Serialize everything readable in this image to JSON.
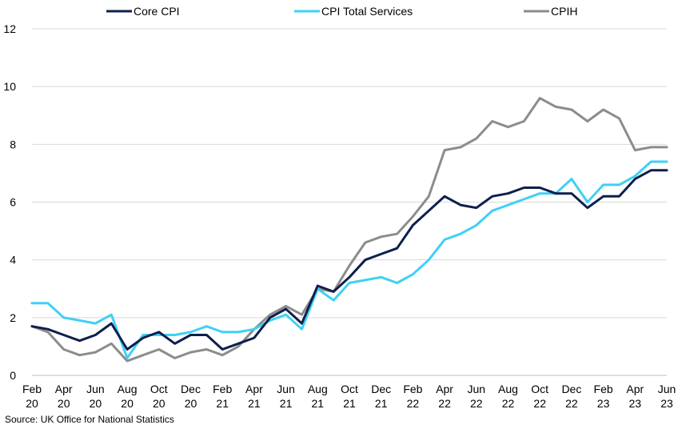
{
  "chart_data": {
    "type": "line",
    "title": "",
    "xlabel": "",
    "ylabel": "",
    "ylim": [
      0,
      12
    ],
    "yticks": [
      0,
      2,
      4,
      6,
      8,
      10,
      12
    ],
    "grid": "horizontal",
    "legend_position": "top",
    "x": [
      "Feb 20",
      "Mar 20",
      "Apr 20",
      "May 20",
      "Jun 20",
      "Jul 20",
      "Aug 20",
      "Sep 20",
      "Oct 20",
      "Nov 20",
      "Dec 20",
      "Jan 21",
      "Feb 21",
      "Mar 21",
      "Apr 21",
      "May 21",
      "Jun 21",
      "Jul 21",
      "Aug 21",
      "Sep 21",
      "Oct 21",
      "Nov 21",
      "Dec 21",
      "Jan 22",
      "Feb 22",
      "Mar 22",
      "Apr 22",
      "May 22",
      "Jun 22",
      "Jul 22",
      "Aug 22",
      "Sep 22",
      "Oct 22",
      "Nov 22",
      "Dec 22",
      "Jan 23",
      "Feb 23",
      "Mar 23",
      "Apr 23",
      "May 23",
      "Jun 23"
    ],
    "x_tick_labels": [
      {
        "line1": "Feb",
        "line2": "20"
      },
      {
        "line1": "Apr",
        "line2": "20"
      },
      {
        "line1": "Jun",
        "line2": "20"
      },
      {
        "line1": "Aug",
        "line2": "20"
      },
      {
        "line1": "Oct",
        "line2": "20"
      },
      {
        "line1": "Dec",
        "line2": "20"
      },
      {
        "line1": "Feb",
        "line2": "21"
      },
      {
        "line1": "Apr",
        "line2": "21"
      },
      {
        "line1": "Jun",
        "line2": "21"
      },
      {
        "line1": "Aug",
        "line2": "21"
      },
      {
        "line1": "Oct",
        "line2": "21"
      },
      {
        "line1": "Dec",
        "line2": "21"
      },
      {
        "line1": "Feb",
        "line2": "22"
      },
      {
        "line1": "Apr",
        "line2": "22"
      },
      {
        "line1": "Jun",
        "line2": "22"
      },
      {
        "line1": "Aug",
        "line2": "22"
      },
      {
        "line1": "Oct",
        "line2": "22"
      },
      {
        "line1": "Dec",
        "line2": "22"
      },
      {
        "line1": "Feb",
        "line2": "23"
      },
      {
        "line1": "Apr",
        "line2": "23"
      },
      {
        "line1": "Jun",
        "line2": "23"
      }
    ],
    "series": [
      {
        "name": "Core CPI",
        "color": "#0e1f4d",
        "values": [
          1.7,
          1.6,
          1.4,
          1.2,
          1.4,
          1.8,
          0.9,
          1.3,
          1.5,
          1.1,
          1.4,
          1.4,
          0.9,
          1.1,
          1.3,
          2.0,
          2.3,
          1.8,
          3.1,
          2.9,
          3.4,
          4.0,
          4.2,
          4.4,
          5.2,
          5.7,
          6.2,
          5.9,
          5.8,
          6.2,
          6.3,
          6.5,
          6.5,
          6.3,
          6.3,
          5.8,
          6.2,
          6.2,
          6.8,
          7.1,
          7.1
        ]
      },
      {
        "name": "CPI Total Services",
        "color": "#3fd0f5",
        "values": [
          2.5,
          2.5,
          2.0,
          1.9,
          1.8,
          2.1,
          0.6,
          1.4,
          1.4,
          1.4,
          1.5,
          1.7,
          1.5,
          1.5,
          1.6,
          1.9,
          2.1,
          1.6,
          3.0,
          2.6,
          3.2,
          3.3,
          3.4,
          3.2,
          3.5,
          4.0,
          4.7,
          4.9,
          5.2,
          5.7,
          5.9,
          6.1,
          6.3,
          6.3,
          6.8,
          6.0,
          6.6,
          6.6,
          6.9,
          7.4,
          7.4
        ]
      },
      {
        "name": "CPIH",
        "color": "#8c8c8c",
        "values": [
          1.7,
          1.5,
          0.9,
          0.7,
          0.8,
          1.1,
          0.5,
          0.7,
          0.9,
          0.6,
          0.8,
          0.9,
          0.7,
          1.0,
          1.6,
          2.1,
          2.4,
          2.1,
          3.0,
          2.9,
          3.8,
          4.6,
          4.8,
          4.9,
          5.5,
          6.2,
          7.8,
          7.9,
          8.2,
          8.8,
          8.6,
          8.8,
          9.6,
          9.3,
          9.2,
          8.8,
          9.2,
          8.9,
          7.8,
          7.9,
          7.9
        ]
      }
    ]
  },
  "source": "Source: UK Office for National Statistics"
}
